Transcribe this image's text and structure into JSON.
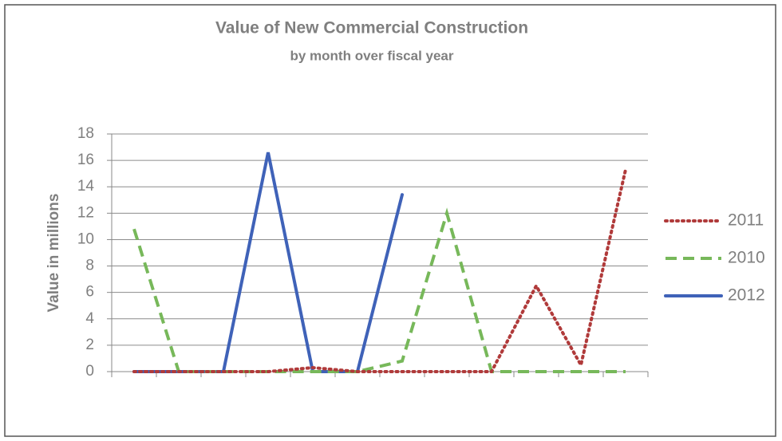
{
  "chart_data": {
    "type": "line",
    "title": "Value of New Commercial Construction",
    "subtitle": "by month over fiscal year",
    "ylabel": "Value in millions",
    "categories": [
      null,
      null,
      null,
      null,
      null,
      null,
      null,
      null,
      null,
      null,
      null,
      null
    ],
    "series": [
      {
        "name": "2011",
        "color": "#b03a3a",
        "line_style": "dotted",
        "values": [
          0,
          0,
          0,
          0,
          0.3,
          0,
          0,
          0,
          0,
          6.5,
          0.5,
          15.3
        ]
      },
      {
        "name": "2010",
        "color": "#77b85a",
        "line_style": "dashed",
        "values": [
          10.8,
          0,
          0,
          0,
          0,
          0,
          0.8,
          12,
          0,
          0,
          0,
          0
        ]
      },
      {
        "name": "2012",
        "color": "#3f62b8",
        "line_style": "solid",
        "values": [
          0,
          0,
          0,
          16.6,
          0,
          0,
          13.4,
          null,
          null,
          null,
          null,
          null
        ]
      }
    ],
    "ylim": [
      0,
      18
    ],
    "yticks": [
      0,
      2,
      4,
      6,
      8,
      10,
      12,
      14,
      16,
      18
    ],
    "grid": true,
    "legend": "right"
  }
}
